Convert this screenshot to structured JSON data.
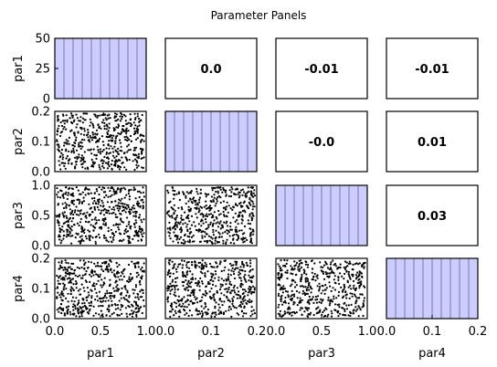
{
  "figure": {
    "title": "Parameter Panels"
  },
  "params": [
    "par1",
    "par2",
    "par3",
    "par4"
  ],
  "colors": {
    "hist_fill": "#ccccff",
    "hist_edge": "#7777aa",
    "points": "#000000",
    "frame": "#000000"
  },
  "chart_data": {
    "type": "scatter-matrix",
    "title": "Parameter Panels",
    "variables": [
      {
        "name": "par1",
        "range": [
          0.0,
          1.0
        ],
        "ticks": [
          0.0,
          0.5,
          1.0
        ],
        "tick_labels": [
          "0.0",
          "0.5",
          "1.0"
        ]
      },
      {
        "name": "par2",
        "range": [
          0.0,
          0.2
        ],
        "ticks": [
          0.0,
          0.1,
          0.2
        ],
        "tick_labels": [
          "0.0",
          "0.1",
          "0.2"
        ]
      },
      {
        "name": "par3",
        "range": [
          0.0,
          1.0
        ],
        "ticks": [
          0.0,
          0.5,
          1.0
        ],
        "tick_labels": [
          "0.0",
          "0.5",
          "1.0"
        ]
      },
      {
        "name": "par4",
        "range": [
          0.0,
          0.2
        ],
        "ticks": [
          0.0,
          0.1,
          0.2
        ],
        "tick_labels": [
          "0.0",
          "0.1",
          "0.2"
        ]
      }
    ],
    "diagonal": {
      "type": "histogram",
      "bins": 10,
      "counts": [
        50,
        50,
        50,
        50,
        50,
        50,
        50,
        50,
        50,
        50
      ],
      "first_panel_ylim": [
        0,
        50
      ],
      "first_panel_yticks": [
        0,
        25,
        50
      ],
      "first_panel_ytick_labels": [
        "0",
        "25",
        "50"
      ]
    },
    "correlations": [
      {
        "row": "par1",
        "col": "par2",
        "label": "0.0"
      },
      {
        "row": "par1",
        "col": "par3",
        "label": "-0.01"
      },
      {
        "row": "par1",
        "col": "par4",
        "label": "-0.01"
      },
      {
        "row": "par2",
        "col": "par3",
        "label": "-0.0"
      },
      {
        "row": "par2",
        "col": "par4",
        "label": "0.01"
      },
      {
        "row": "par3",
        "col": "par4",
        "label": "0.03"
      }
    ],
    "scatter": {
      "distribution": "uniform",
      "points_per_panel": 500,
      "panels": [
        "par2-par1",
        "par3-par1",
        "par3-par2",
        "par4-par1",
        "par4-par2",
        "par4-par3"
      ]
    }
  }
}
